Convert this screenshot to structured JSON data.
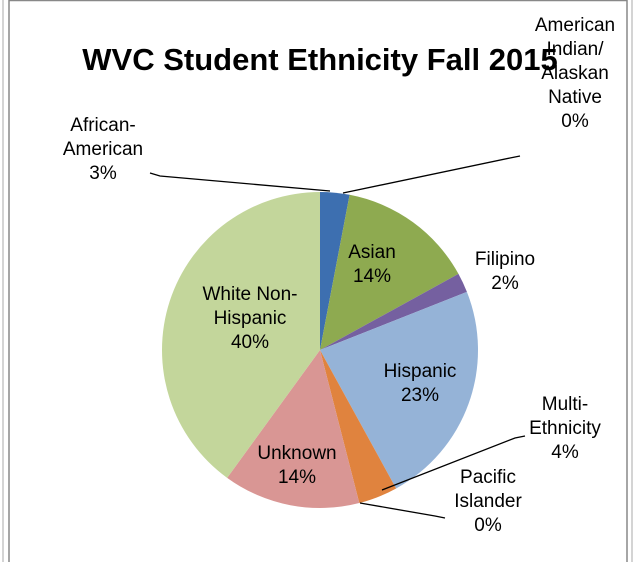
{
  "chart_data": {
    "type": "pie",
    "title": "WVC Student Ethnicity Fall 2015",
    "categories": [
      "African-American",
      "American Indian/ Alaskan Native",
      "Asian",
      "Filipino",
      "Hispanic",
      "Multi-Ethnicity",
      "Pacific Islander",
      "Unknown",
      "White Non-Hispanic"
    ],
    "values": [
      3,
      0,
      14,
      2,
      23,
      4,
      0,
      14,
      40
    ],
    "value_labels": [
      "3%",
      "0%",
      "14%",
      "2%",
      "23%",
      "4%",
      "0%",
      "14%",
      "40%"
    ],
    "colors": [
      "#3d6fb0",
      "#c0392b",
      "#8eaa50",
      "#7560a0",
      "#95b3d7",
      "#e0833e",
      "#9acb3e",
      "#d99694",
      "#c3d69b"
    ]
  }
}
